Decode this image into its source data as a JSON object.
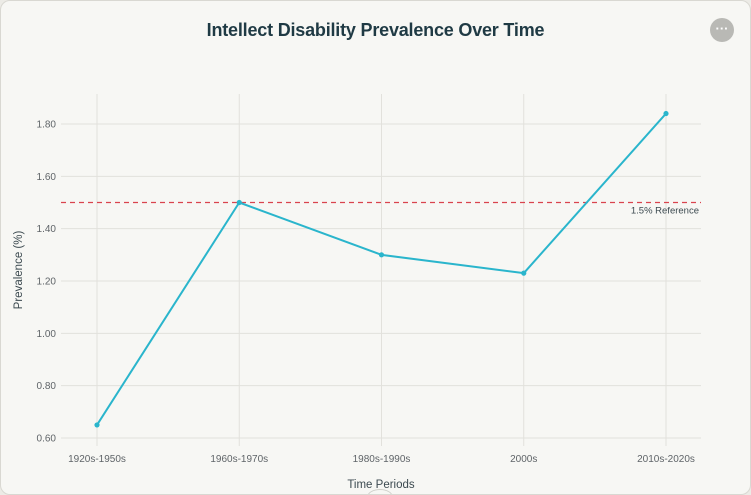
{
  "header": {
    "title": "Intellect Disability Prevalence Over Time",
    "more_icon": "ellipsis-icon",
    "more_label": "···"
  },
  "chart_data": {
    "type": "line",
    "title": "Intellect Disability Prevalence Over Time",
    "xlabel": "Time Periods",
    "ylabel": "Prevalence (%)",
    "categories": [
      "1920s-1950s",
      "1960s-1970s",
      "1980s-1990s",
      "2000s",
      "2010s-2020s"
    ],
    "series": [
      {
        "name": "Prevalence (%)",
        "values": [
          0.65,
          1.5,
          1.3,
          1.23,
          1.84
        ],
        "color": "#2ab5cc"
      }
    ],
    "ylim": [
      0.58,
      1.9
    ],
    "yticks": [
      0.6,
      0.8,
      1.0,
      1.2,
      1.4,
      1.6,
      1.8
    ],
    "ytick_labels": [
      "0.60",
      "0.80",
      "1.00",
      "1.20",
      "1.40",
      "1.60",
      "1.80"
    ],
    "grid": true,
    "reference_line": {
      "value": 1.5,
      "label": "1.5% Reference",
      "color": "#d9444e"
    }
  }
}
